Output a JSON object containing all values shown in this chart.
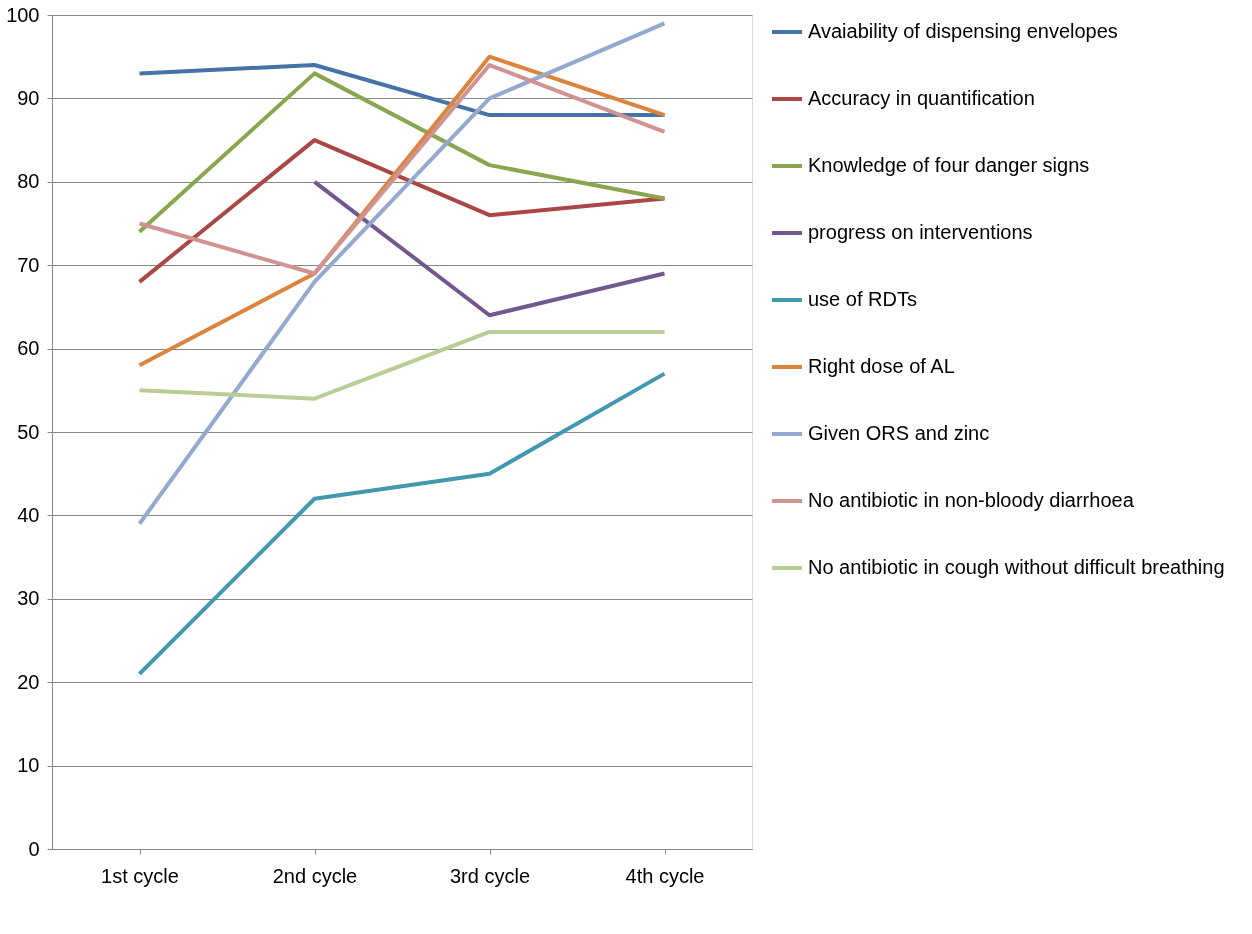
{
  "chart_data": {
    "type": "line",
    "categories": [
      "1st cycle",
      "2nd cycle",
      "3rd cycle",
      "4th cycle"
    ],
    "series": [
      {
        "name": "Avaiability of dispensing envelopes",
        "color": "#4572a7",
        "values": [
          93,
          94,
          88,
          88
        ]
      },
      {
        "name": "Accuracy in quantification",
        "color": "#aa4643",
        "values": [
          68,
          85,
          76,
          78
        ]
      },
      {
        "name": "Knowledge of four danger signs",
        "color": "#89a54e",
        "values": [
          74,
          93,
          82,
          78
        ]
      },
      {
        "name": "progress on interventions",
        "color": "#71588f",
        "values": [
          null,
          80,
          64,
          69
        ]
      },
      {
        "name": "use of RDTs",
        "color": "#4198af",
        "values": [
          21,
          42,
          45,
          57
        ]
      },
      {
        "name": "Right dose of AL",
        "color": "#db843d",
        "values": [
          58,
          69,
          95,
          88
        ]
      },
      {
        "name": "Given ORS and zinc",
        "color": "#93a9cf",
        "values": [
          39,
          68,
          90,
          99
        ]
      },
      {
        "name": "No antibiotic in non-bloody diarrhoea",
        "color": "#d19392",
        "values": [
          75,
          69,
          94,
          86
        ]
      },
      {
        "name": "No antibiotic in cough without difficult breathing",
        "color": "#b9cd96",
        "values": [
          55,
          54,
          62,
          62
        ]
      }
    ],
    "ylim": [
      0,
      100
    ],
    "yticks": [
      0,
      10,
      20,
      30,
      40,
      50,
      60,
      70,
      80,
      90,
      100
    ],
    "grid": "y",
    "legend": "right",
    "marker": "none",
    "line_style": "solid"
  }
}
